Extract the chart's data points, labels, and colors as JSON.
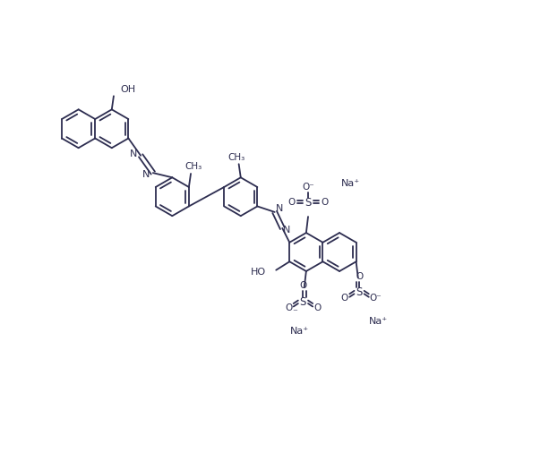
{
  "bg_color": "#ffffff",
  "bond_color": "#2d2d50",
  "lw": 1.3,
  "figsize": [
    6.13,
    5.15
  ],
  "dpi": 100,
  "xlim": [
    0,
    12.5
  ],
  "ylim": [
    -1.5,
    10.5
  ]
}
